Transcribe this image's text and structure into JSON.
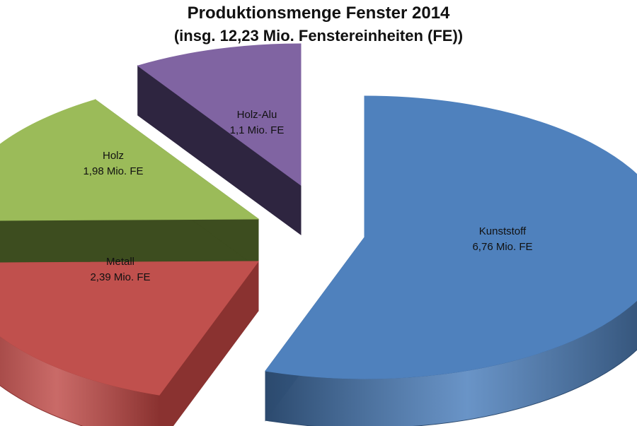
{
  "chart_data": {
    "type": "pie",
    "title": "Produktionsmenge Fenster 2014",
    "subtitle": "(insg. 12,23 Mio. Fenstereinheiten (FE))",
    "unit": "Mio. FE",
    "total": 12.23,
    "slices": [
      {
        "category": "Kunststoff",
        "value": 6.76,
        "value_label": "6,76 Mio. FE",
        "color": "#4f81bd",
        "side_color": "#2c4a6e"
      },
      {
        "category": "Metall",
        "value": 2.39,
        "value_label": "2,39 Mio. FE",
        "color": "#c0504d",
        "side_color": "#8a3230"
      },
      {
        "category": "Holz",
        "value": 1.98,
        "value_label": "1,98 Mio. FE",
        "color": "#9bbb59",
        "side_color": "#3d4d1f"
      },
      {
        "category": "Holz-Alu",
        "value": 1.1,
        "value_label": "1,1 Mio. FE",
        "color": "#8064a2",
        "side_color": "#2e2540"
      }
    ],
    "style": "3d-exploded"
  }
}
